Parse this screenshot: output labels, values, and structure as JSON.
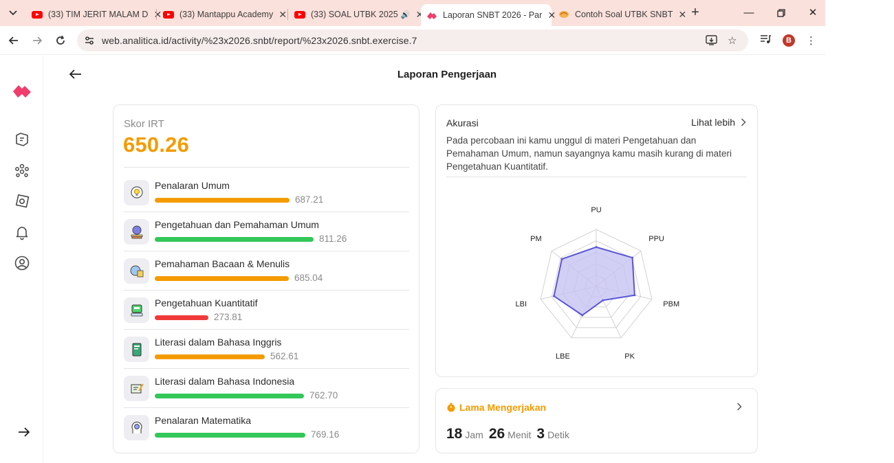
{
  "browser": {
    "tabs": [
      {
        "title": "(33) TIM JERIT MALAM D",
        "favicon": "youtube-icon",
        "active": false
      },
      {
        "title": "(33) Mantappu Academy",
        "favicon": "youtube-icon",
        "active": false
      },
      {
        "title": "(33) SOAL UTBK 2025",
        "favicon": "youtube-icon",
        "active": false,
        "audio": true
      },
      {
        "title": "Laporan SNBT 2026 - Par",
        "favicon": "analitica-logo",
        "active": true
      },
      {
        "title": "Contoh Soal UTBK SNBT",
        "favicon": "zenius-icon",
        "active": false
      }
    ],
    "url": "web.analitica.id/activity/%23x2026.snbt/report/%23x2026.snbt.exercise.7",
    "profile_initial": "B"
  },
  "page": {
    "title": "Laporan Pengerjaan"
  },
  "score": {
    "label": "Skor IRT",
    "value": "650.26",
    "subjects": [
      {
        "name": "Penalaran Umum",
        "value": "687.21",
        "fraction": 0.687,
        "color": "#f49b00",
        "icon": "lightbulb-head-icon"
      },
      {
        "name": "Pengetahuan dan Pemahaman Umum",
        "value": "811.26",
        "fraction": 0.811,
        "color": "#34c759",
        "icon": "globe-books-icon"
      },
      {
        "name": "Pemahaman Bacaan & Menulis",
        "value": "685.04",
        "fraction": 0.685,
        "color": "#f49b00",
        "icon": "reading-globe-icon"
      },
      {
        "name": "Pengetahuan Kuantitatif",
        "value": "273.81",
        "fraction": 0.274,
        "color": "#f03a3a",
        "icon": "calculator-icon"
      },
      {
        "name": "Literasi dalam Bahasa Inggris",
        "value": "562.61",
        "fraction": 0.563,
        "color": "#f49b00",
        "icon": "english-book-icon"
      },
      {
        "name": "Literasi dalam Bahasa Indonesia",
        "value": "762.70",
        "fraction": 0.763,
        "color": "#34c759",
        "icon": "writing-board-icon"
      },
      {
        "name": "Penalaran Matematika",
        "value": "769.16",
        "fraction": 0.769,
        "color": "#34c759",
        "icon": "math-head-icon"
      }
    ]
  },
  "accuracy": {
    "title": "Akurasi",
    "more_label": "Lihat lebih",
    "description": "Pada percobaan ini kamu unggul di materi Pengetahuan dan Pemahaman Umum, namun sayangnya kamu masih kurang di materi Pengetahuan Kuantitatif.",
    "chart_data": {
      "type": "radar",
      "axes": [
        "PU",
        "PPU",
        "PBM",
        "PK",
        "LBE",
        "LBI",
        "PM"
      ],
      "values": [
        0.69,
        0.81,
        0.69,
        0.27,
        0.56,
        0.76,
        0.77
      ],
      "range": [
        0,
        1
      ],
      "grid_levels": 5,
      "fill_color": "#c7c3f2",
      "line_color": "#5b55d6"
    }
  },
  "duration": {
    "title": "Lama Mengerjakan",
    "hours": "18",
    "hours_unit": "Jam",
    "minutes": "26",
    "minutes_unit": "Menit",
    "seconds": "3",
    "seconds_unit": "Detik"
  },
  "colors": {
    "accent": "#f49b00",
    "brand": "#ef3e6d"
  }
}
